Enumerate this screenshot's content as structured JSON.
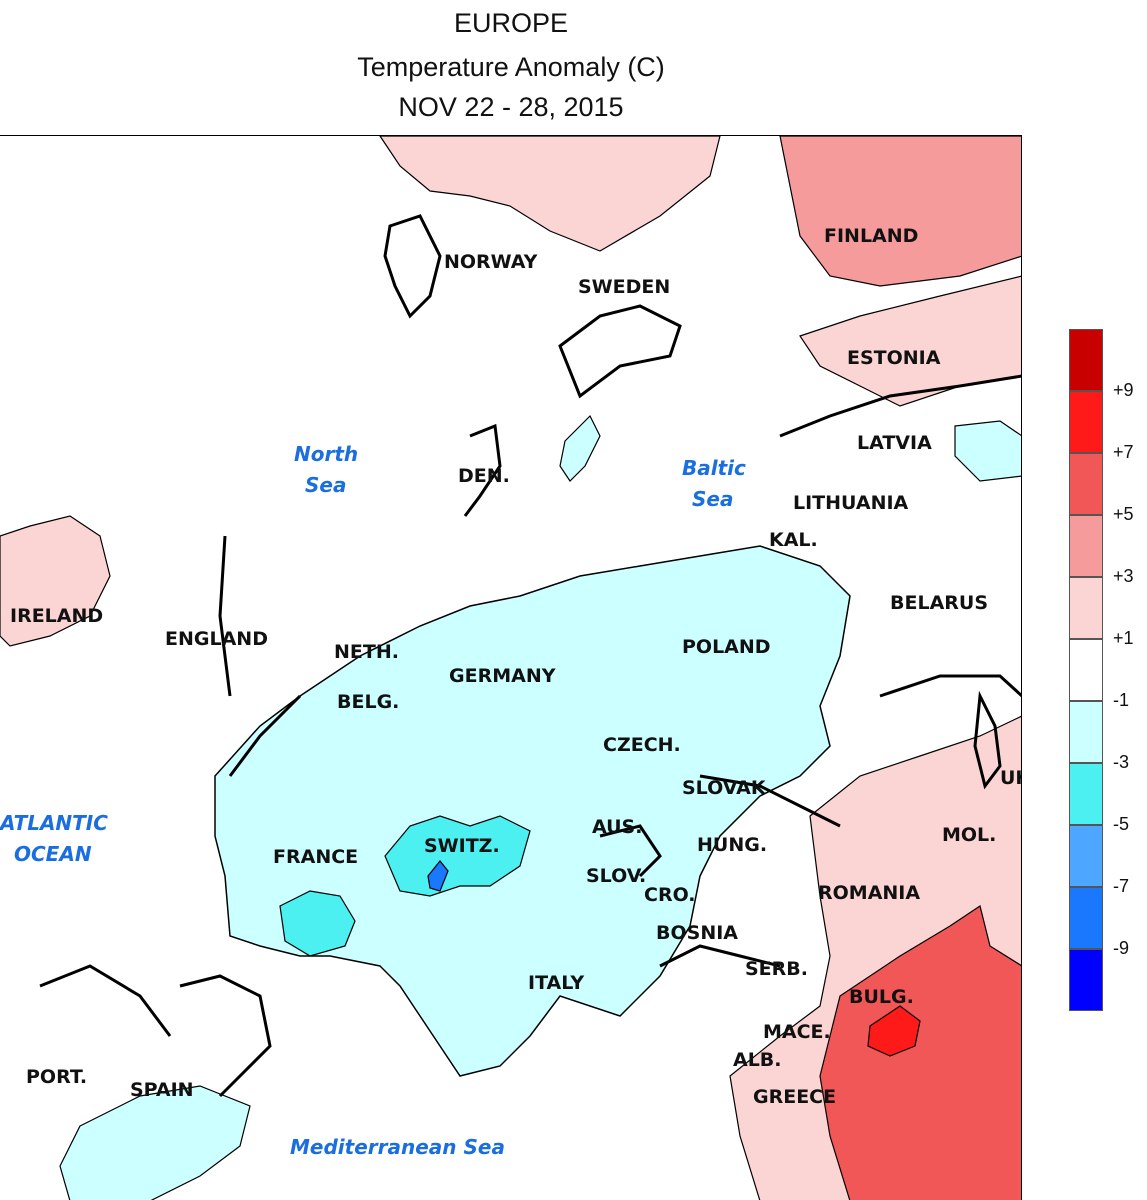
{
  "title": {
    "line1": "EUROPE",
    "line2": "Temperature Anomaly (C)",
    "line3": "NOV 22 - 28, 2015"
  },
  "map": {
    "country_labels": [
      {
        "id": "norway",
        "text": "NORWAY"
      },
      {
        "id": "sweden",
        "text": "SWEDEN"
      },
      {
        "id": "finland",
        "text": "FINLAND"
      },
      {
        "id": "estonia",
        "text": "ESTONIA"
      },
      {
        "id": "latvia",
        "text": "LATVIA"
      },
      {
        "id": "lithuania",
        "text": "LITHUANIA"
      },
      {
        "id": "kal",
        "text": "KAL."
      },
      {
        "id": "belarus",
        "text": "BELARUS"
      },
      {
        "id": "den",
        "text": "DEN."
      },
      {
        "id": "ireland",
        "text": "IRELAND"
      },
      {
        "id": "england",
        "text": "ENGLAND"
      },
      {
        "id": "neth",
        "text": "NETH."
      },
      {
        "id": "belg",
        "text": "BELG."
      },
      {
        "id": "germany",
        "text": "GERMANY"
      },
      {
        "id": "poland",
        "text": "POLAND"
      },
      {
        "id": "czech",
        "text": "CZECH."
      },
      {
        "id": "slovak",
        "text": "SLOVAK"
      },
      {
        "id": "uk",
        "text": "UK"
      },
      {
        "id": "mol",
        "text": "MOL."
      },
      {
        "id": "france",
        "text": "FRANCE"
      },
      {
        "id": "switz",
        "text": "SWITZ."
      },
      {
        "id": "aus",
        "text": "AUS."
      },
      {
        "id": "hung",
        "text": "HUNG."
      },
      {
        "id": "slov",
        "text": "SLOV."
      },
      {
        "id": "cro",
        "text": "CRO."
      },
      {
        "id": "romania",
        "text": "ROMANIA"
      },
      {
        "id": "bosnia",
        "text": "BOSNIA"
      },
      {
        "id": "serb",
        "text": "SERB."
      },
      {
        "id": "italy",
        "text": "ITALY"
      },
      {
        "id": "bulg",
        "text": "BULG."
      },
      {
        "id": "mace",
        "text": "MACE."
      },
      {
        "id": "alb",
        "text": "ALB."
      },
      {
        "id": "greece",
        "text": "GREECE"
      },
      {
        "id": "port",
        "text": "PORT."
      },
      {
        "id": "spain",
        "text": "SPAIN"
      }
    ],
    "sea_labels": {
      "north_sea_1": "North",
      "north_sea_2": "Sea",
      "baltic_sea_1": "Baltic",
      "baltic_sea_2": "Sea",
      "atlantic_1": "ATLANTIC",
      "atlantic_2": "OCEAN",
      "mediterranean": "Mediterranean Sea"
    }
  },
  "legend": {
    "colors": [
      "#c80000",
      "#ff1a1a",
      "#f25757",
      "#f59b9b",
      "#fbd4d4",
      "#ffffff",
      "#ccffff",
      "#4df0f0",
      "#4da6ff",
      "#1a78ff",
      "#0000ff"
    ],
    "labels": [
      "+9",
      "+7",
      "+5",
      "+3",
      "+1",
      "-1",
      "-3",
      "-5",
      "-7",
      "-9"
    ]
  }
}
